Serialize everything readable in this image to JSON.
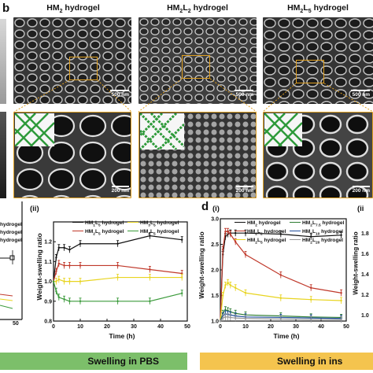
{
  "panel_b": {
    "letter": "b",
    "columns": [
      {
        "title_base": "HM",
        "title_sub1": "2",
        "title_mid": "",
        "title_sub2": "",
        "title_end": " hydrogel",
        "scale_top": "500 nm",
        "scale_bottom": "200 nm"
      },
      {
        "title_base": "HM",
        "title_sub1": "2",
        "title_mid": "L",
        "title_sub2": "2",
        "title_end": " hydrogel",
        "scale_top": "500 nm",
        "scale_bottom": "200 nm"
      },
      {
        "title_base": "HM",
        "title_sub1": "2",
        "title_mid": "L",
        "title_sub2": "5",
        "title_end": " hydrogel",
        "scale_top": "500 nm",
        "scale_bottom": "200 nm"
      }
    ]
  },
  "left_partial_chart": {
    "legend": [
      {
        "text": "hydrogel",
        "color": "#111111"
      },
      {
        "text": "hydrogel",
        "color": "#111111"
      },
      {
        "text": "hydrogel",
        "color": "#111111"
      }
    ],
    "tick_50": "50"
  },
  "chart_data": [
    {
      "type": "line",
      "sub_label": "(ii)",
      "title": "",
      "xlabel": "Time (h)",
      "ylabel": "Weight-swelling ratio",
      "xlim": [
        0,
        50
      ],
      "ylim": [
        0.8,
        1.3
      ],
      "xticks": [
        "0",
        "10",
        "20",
        "30",
        "40",
        "50"
      ],
      "yticks": [
        "0.8",
        "0.9",
        "1.0",
        "1.1",
        "1.2"
      ],
      "x": [
        0,
        1,
        2,
        4,
        6,
        10,
        24,
        36,
        48
      ],
      "series": [
        {
          "name_base": "HM",
          "name_sub1": "1",
          "name_mid": "L",
          "name_sub2": "5",
          "name_end": " hydrogel",
          "color": "#111111",
          "values": [
            1.0,
            1.12,
            1.17,
            1.17,
            1.16,
            1.19,
            1.19,
            1.23,
            1.21
          ]
        },
        {
          "name_base": "HM",
          "name_sub1": "2",
          "name_mid": "L",
          "name_sub2": "5",
          "name_end": " hydrogel",
          "color": "#c0392b",
          "values": [
            1.0,
            1.05,
            1.09,
            1.08,
            1.08,
            1.08,
            1.08,
            1.06,
            1.04
          ]
        },
        {
          "name_base": "HM",
          "name_sub1": "3",
          "name_mid": "L",
          "name_sub2": "5",
          "name_end": " hydrogel",
          "color": "#e8d420",
          "values": [
            1.0,
            1.0,
            1.01,
            1.0,
            1.0,
            1.0,
            1.02,
            1.02,
            1.02
          ]
        },
        {
          "name_base": "HM",
          "name_sub1": "4",
          "name_mid": "L",
          "name_sub2": "5",
          "name_end": " hydrogel",
          "color": "#3a9a3a",
          "values": [
            1.0,
            0.95,
            0.92,
            0.91,
            0.9,
            0.9,
            0.9,
            0.9,
            0.94
          ]
        }
      ]
    },
    {
      "type": "line",
      "panel_letter": "d",
      "sub_label": "(i)",
      "title": "",
      "xlabel": "Time (h)",
      "ylabel": "Weight-swelling ratio",
      "xlim": [
        0,
        50
      ],
      "ylim": [
        1.0,
        3.0
      ],
      "xticks": [
        "0",
        "10",
        "20",
        "30",
        "40",
        "50"
      ],
      "yticks": [
        "1.0",
        "1.5",
        "2.0",
        "2.5",
        "3.0"
      ],
      "x": [
        0,
        1,
        2,
        3,
        4,
        6,
        10,
        24,
        36,
        48
      ],
      "series": [
        {
          "name_base": "HM",
          "name_sub1": "2",
          "name_mid": "",
          "name_sub2": "",
          "name_end": " hydrogel",
          "color": "#111111",
          "values": [
            1.0,
            2.3,
            2.65,
            2.7,
            2.72,
            2.72,
            2.72,
            2.7,
            2.65,
            2.68
          ]
        },
        {
          "name_base": "HM",
          "name_sub1": "2",
          "name_mid": "L",
          "name_sub2": "2",
          "name_end": " hydrogel",
          "color": "#c0392b",
          "values": [
            1.0,
            2.4,
            2.75,
            2.75,
            2.7,
            2.55,
            2.3,
            1.9,
            1.65,
            1.55
          ]
        },
        {
          "name_base": "HM",
          "name_sub1": "2",
          "name_mid": "L",
          "name_sub2": "5",
          "name_end": " hydrogel",
          "color": "#e8d420",
          "values": [
            1.0,
            1.5,
            1.7,
            1.75,
            1.7,
            1.65,
            1.55,
            1.45,
            1.42,
            1.4
          ]
        },
        {
          "name_base": "HM",
          "name_sub1": "2",
          "name_mid": "L",
          "name_sub2": "7.5",
          "name_end": " hydrogel",
          "color": "#2e7d32",
          "values": [
            1.0,
            1.15,
            1.22,
            1.2,
            1.18,
            1.15,
            1.12,
            1.1,
            1.08,
            1.07
          ]
        },
        {
          "name_base": "HM",
          "name_sub1": "2",
          "name_mid": "L",
          "name_sub2": "10",
          "name_end": " hydrogel",
          "color": "#1f4e9c",
          "values": [
            1.0,
            1.1,
            1.14,
            1.13,
            1.12,
            1.1,
            1.08,
            1.07,
            1.06,
            1.05
          ]
        },
        {
          "name_base": "HM",
          "name_sub1": "2",
          "name_mid": "L",
          "name_sub2": "20",
          "name_end": " hydrogel",
          "color": "#9a9a9a",
          "values": [
            1.0,
            1.06,
            1.08,
            1.08,
            1.07,
            1.06,
            1.05,
            1.04,
            1.03,
            1.03
          ]
        }
      ]
    }
  ],
  "right_partial_chart": {
    "sub_label": "(ii",
    "ylabel": "Weight-swelling ratio",
    "yticks": [
      "1.0",
      "1.2",
      "1.4",
      "1.6",
      "1.8"
    ]
  },
  "banners": {
    "left": "Swelling in PBS",
    "right": "Swelling in ins"
  },
  "colors": {
    "banner_left": "#7cbf6a",
    "banner_right": "#f4c44e",
    "callout": "#e0a020"
  }
}
